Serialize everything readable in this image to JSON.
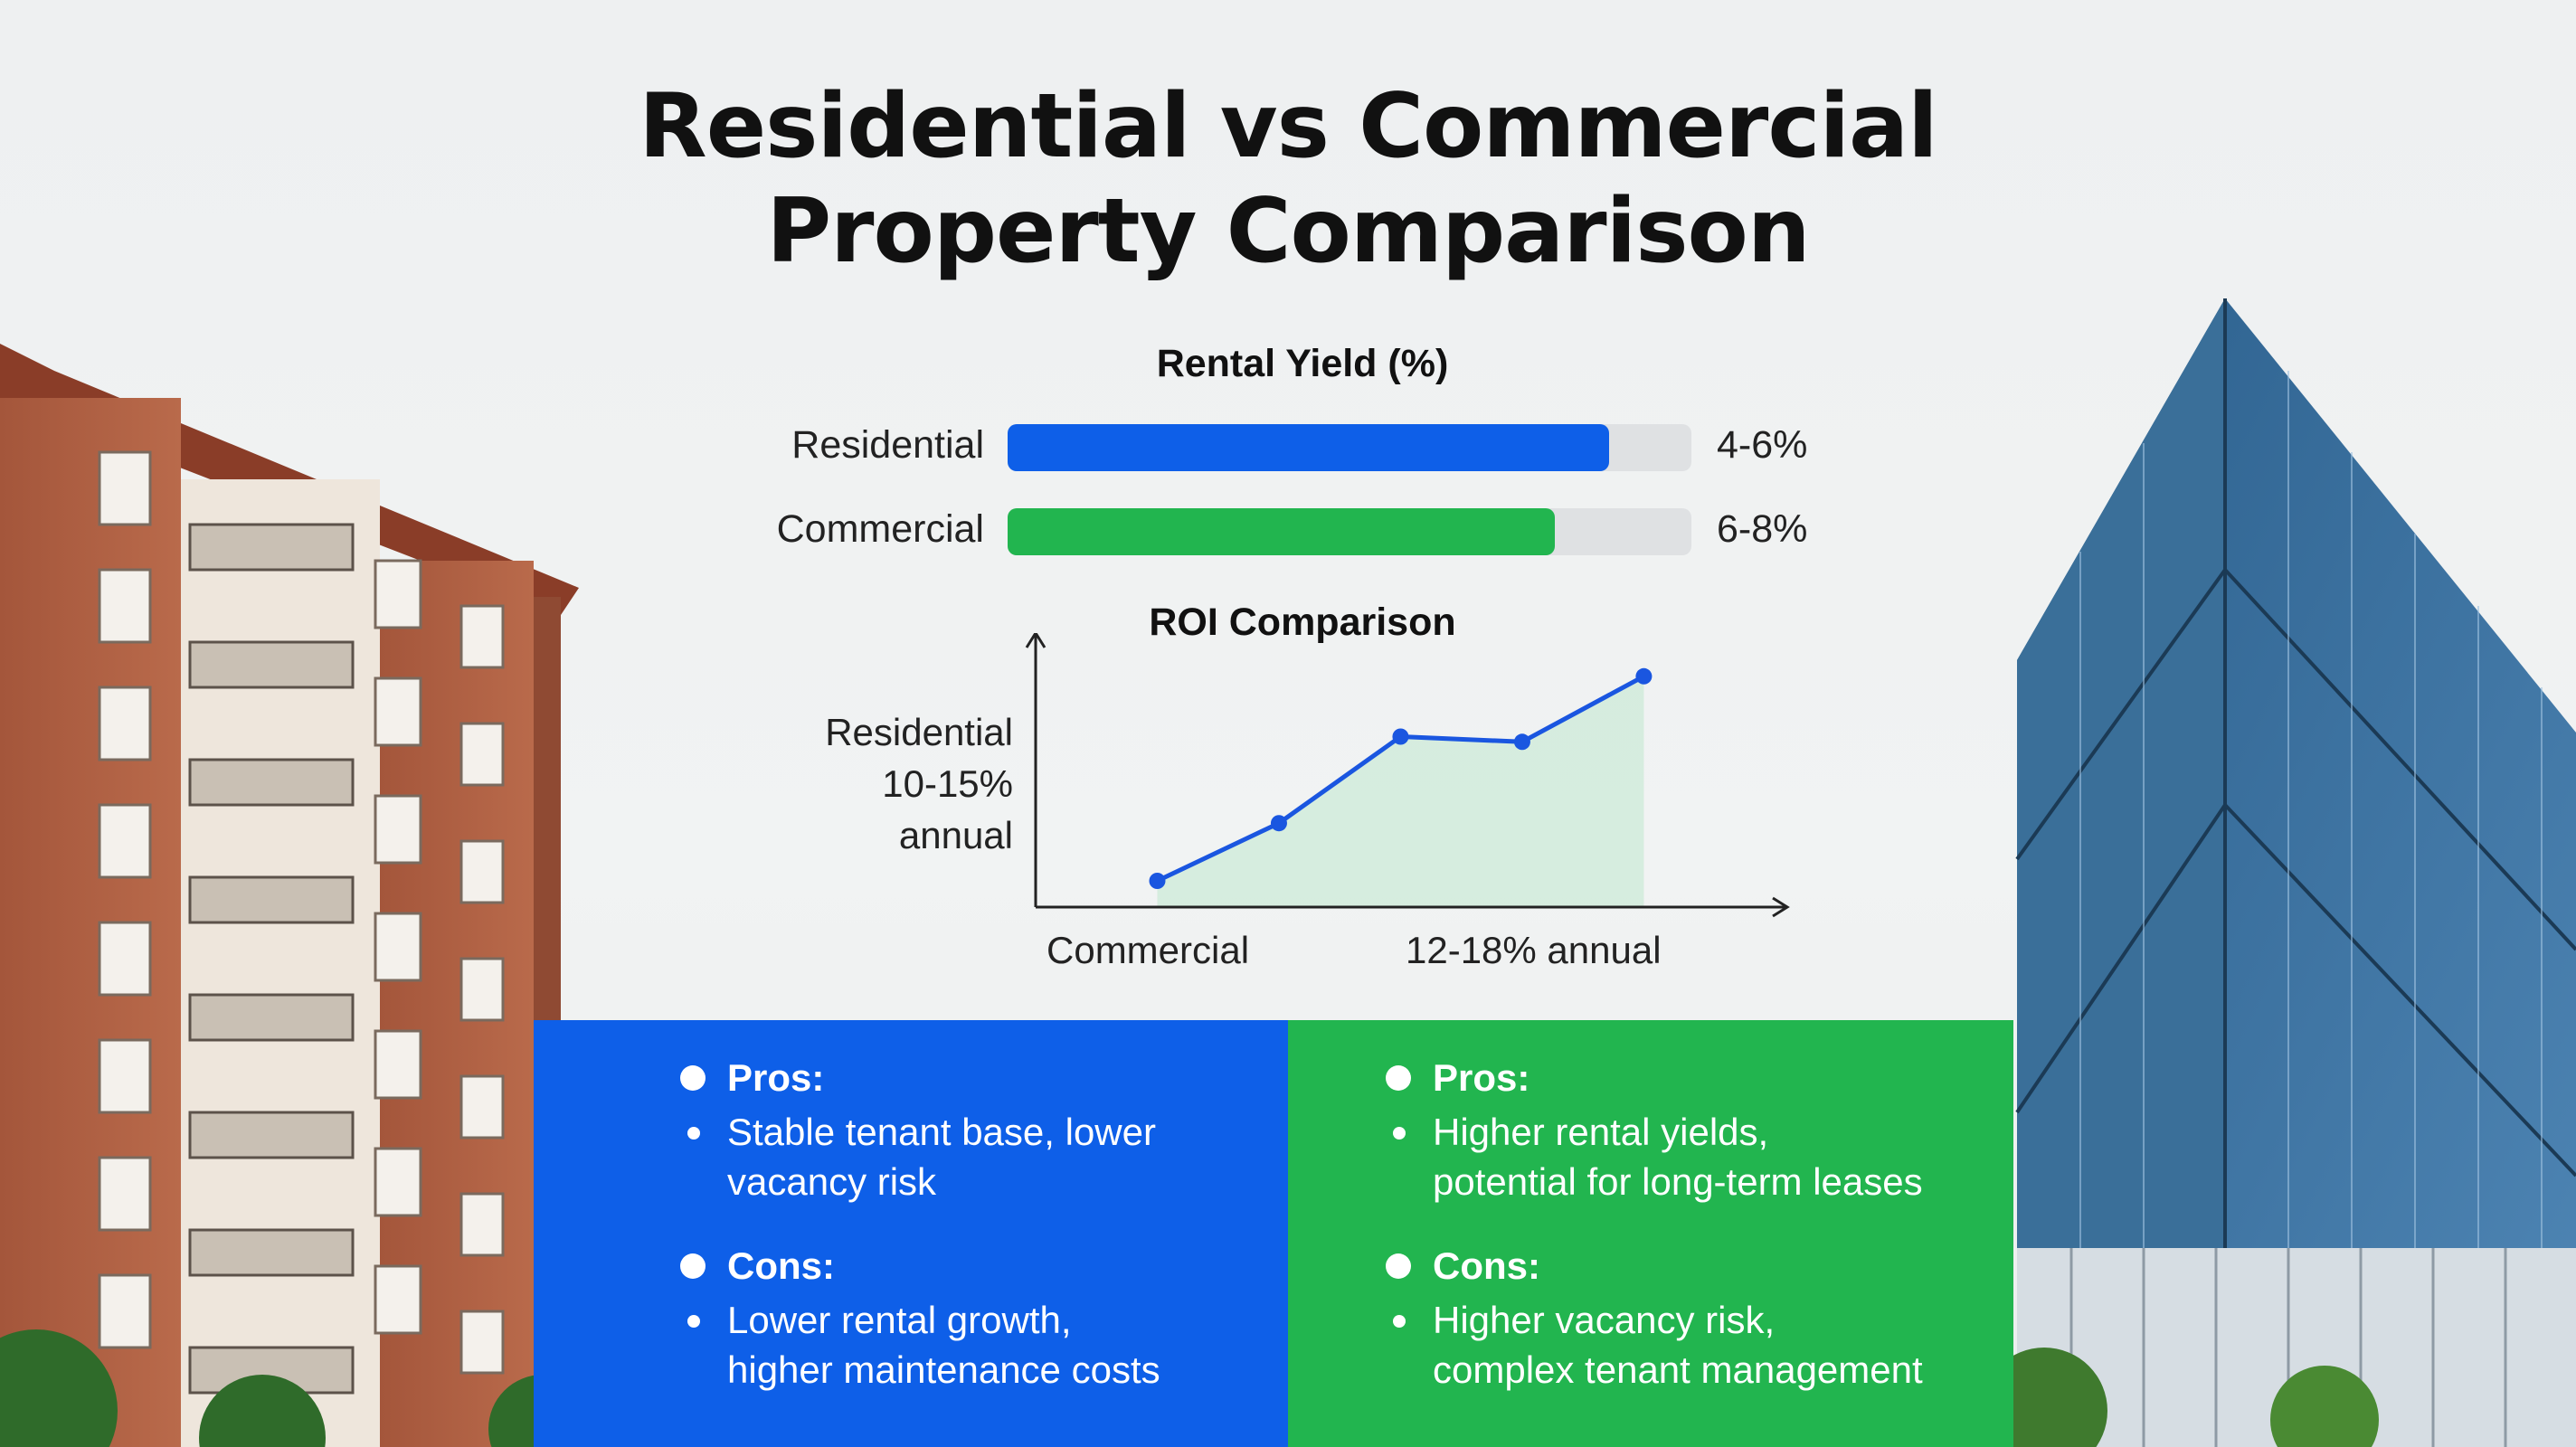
{
  "title": {
    "line1": "Residential vs Commercial",
    "line2": "Property Comparison"
  },
  "chart_data": [
    {
      "type": "bar",
      "title": "Rental Yield (%)",
      "categories": [
        "Residential",
        "Commercial"
      ],
      "value_labels": [
        "4-6%",
        "6-8%"
      ],
      "values": [
        5,
        7
      ],
      "fill_fraction": [
        0.88,
        0.8
      ],
      "colors": [
        "#0e5fe8",
        "#22b54f"
      ],
      "track_color": "#dfe1e3"
    },
    {
      "type": "area",
      "title": "ROI Comparison",
      "y_annotation": [
        "Residential",
        "10-15%",
        "annual"
      ],
      "x_annotation": [
        "Commercial",
        "12-18% annual"
      ],
      "points": [
        {
          "x": 1,
          "y": 1.0
        },
        {
          "x": 2,
          "y": 3.2
        },
        {
          "x": 3,
          "y": 6.5
        },
        {
          "x": 4,
          "y": 6.3
        },
        {
          "x": 5,
          "y": 8.8
        }
      ],
      "ylim": [
        0,
        10
      ],
      "xlim": [
        0,
        5.8
      ],
      "line_color": "#1a56e0",
      "fill_color": "#bfe8cd"
    }
  ],
  "panels": {
    "residential": {
      "pros_label": "Pros:",
      "pros_text": [
        "Stable tenant base, lower",
        "vacancy risk"
      ],
      "cons_label": "Cons:",
      "cons_text": [
        "Lower rental growth,",
        "higher maintenance costs"
      ],
      "color": "#0e5fe8"
    },
    "commercial": {
      "pros_label": "Pros:",
      "pros_text": [
        "Higher rental yields,",
        "potential for long-term leases"
      ],
      "cons_label": "Cons:",
      "cons_text": [
        "Higher vacancy risk,",
        "complex tenant management"
      ],
      "color": "#22b54f"
    }
  }
}
